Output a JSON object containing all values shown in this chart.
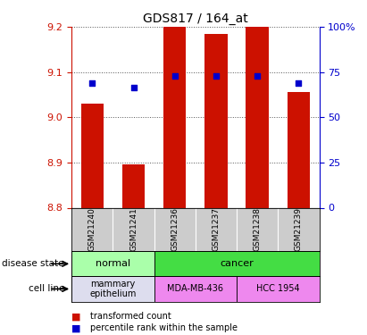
{
  "title": "GDS817 / 164_at",
  "samples": [
    "GSM21240",
    "GSM21241",
    "GSM21236",
    "GSM21237",
    "GSM21238",
    "GSM21239"
  ],
  "bar_values": [
    9.03,
    8.895,
    9.2,
    9.185,
    9.2,
    9.055
  ],
  "percentile_values": [
    9.075,
    9.065,
    9.092,
    9.092,
    9.092,
    9.075
  ],
  "y_min": 8.8,
  "y_max": 9.2,
  "y_ticks": [
    8.8,
    8.9,
    9.0,
    9.1,
    9.2
  ],
  "y_right_ticks": [
    0,
    25,
    50,
    75,
    100
  ],
  "bar_color": "#cc1100",
  "dot_color": "#0000cc",
  "bar_width": 0.55,
  "disease_state_groups": [
    {
      "label": "normal",
      "cols": [
        0,
        1
      ],
      "color": "#aaffaa"
    },
    {
      "label": "cancer",
      "cols": [
        2,
        3,
        4,
        5
      ],
      "color": "#44dd44"
    }
  ],
  "cell_line_groups": [
    {
      "label": "mammary\nepithelium",
      "cols": [
        0,
        1
      ],
      "color": "#ddddee"
    },
    {
      "label": "MDA-MB-436",
      "cols": [
        2,
        3
      ],
      "color": "#ee88ee"
    },
    {
      "label": "HCC 1954",
      "cols": [
        4,
        5
      ],
      "color": "#ee88ee"
    }
  ],
  "legend_items": [
    {
      "label": "transformed count",
      "color": "#cc1100"
    },
    {
      "label": "percentile rank within the sample",
      "color": "#0000cc"
    }
  ],
  "tick_label_color_left": "#cc1100",
  "tick_label_color_right": "#0000cc",
  "grid_color": "#555555",
  "sample_row_color": "#cccccc"
}
